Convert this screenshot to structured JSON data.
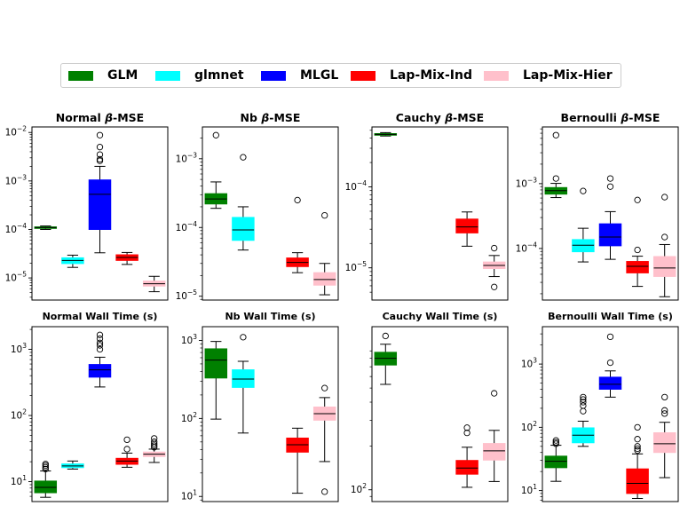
{
  "legend": [
    {
      "label": "GLM",
      "color": "#008000"
    },
    {
      "label": "glmnet",
      "color": "#00ffff"
    },
    {
      "label": "MLGL",
      "color": "#0000ff"
    },
    {
      "label": "Lap-Mix-Ind",
      "color": "#ff0000"
    },
    {
      "label": "Lap-Mix-Hier",
      "color": "#ffc0cb"
    }
  ],
  "chart_data": [
    {
      "type": "box",
      "title": "Normal β-MSE",
      "yscale": "log",
      "ylim": [
        3.5e-06,
        0.013
      ],
      "ticks": [
        {
          "v": 0.01,
          "b": "10",
          "e": "−2"
        },
        {
          "v": 0.001,
          "b": "10",
          "e": "−3"
        },
        {
          "v": 0.0001,
          "b": "10",
          "e": "−4"
        },
        {
          "v": 1e-05,
          "b": "10",
          "e": "−5"
        }
      ],
      "boxes": [
        {
          "series": "GLM",
          "pos": 1,
          "whislo": 0.0001,
          "q1": 0.000105,
          "med": 0.000109,
          "q3": 0.000113,
          "whishi": 0.000118,
          "fliers": []
        },
        {
          "series": "glmnet",
          "pos": 2,
          "whislo": 1.65e-05,
          "q1": 1.98e-05,
          "med": 2.3e-05,
          "q3": 2.6e-05,
          "whishi": 2.95e-05,
          "fliers": []
        },
        {
          "series": "MLGL",
          "pos": 3,
          "whislo": 3.3e-05,
          "q1": 0.0001,
          "med": 0.00053,
          "q3": 0.00105,
          "whishi": 0.002,
          "fliers": [
            0.0026,
            0.0028,
            0.0035,
            0.005,
            0.0088
          ]
        },
        {
          "series": "Lap-Mix-Ind",
          "pos": 4,
          "whislo": 1.9e-05,
          "q1": 2.3e-05,
          "med": 2.65e-05,
          "q3": 3e-05,
          "whishi": 3.35e-05,
          "fliers": []
        },
        {
          "series": "Lap-Mix-Hier",
          "pos": 5,
          "whislo": 5.2e-06,
          "q1": 6.8e-06,
          "med": 7.6e-06,
          "q3": 8.6e-06,
          "whishi": 1.08e-05,
          "fliers": []
        }
      ]
    },
    {
      "type": "box",
      "title": "Nb β-MSE",
      "yscale": "log",
      "ylim": [
        8.8e-06,
        0.0029
      ],
      "ticks": [
        {
          "v": 0.001,
          "b": "10",
          "e": "−3"
        },
        {
          "v": 0.0001,
          "b": "10",
          "e": "−4"
        },
        {
          "v": 1e-05,
          "b": "10",
          "e": "−5"
        }
      ],
      "boxes": [
        {
          "series": "GLM",
          "pos": 1,
          "whislo": 0.00019,
          "q1": 0.00022,
          "med": 0.00026,
          "q3": 0.00031,
          "whishi": 0.00046,
          "fliers": [
            0.0022
          ]
        },
        {
          "series": "glmnet",
          "pos": 2,
          "whislo": 4.7e-05,
          "q1": 6.5e-05,
          "med": 9.2e-05,
          "q3": 0.00014,
          "whishi": 0.0002,
          "fliers": [
            0.00105
          ]
        },
        {
          "series": "Lap-Mix-Ind",
          "pos": 4,
          "whislo": 2.2e-05,
          "q1": 2.7e-05,
          "med": 3.1e-05,
          "q3": 3.6e-05,
          "whishi": 4.3e-05,
          "fliers": [
            0.00025
          ]
        },
        {
          "series": "Lap-Mix-Hier",
          "pos": 5,
          "whislo": 1.05e-05,
          "q1": 1.45e-05,
          "med": 1.75e-05,
          "q3": 2.2e-05,
          "whishi": 3e-05,
          "fliers": [
            0.00015
          ]
        }
      ]
    },
    {
      "type": "box",
      "title": "Cauchy β-MSE",
      "yscale": "log",
      "ylim": [
        4e-06,
        0.00055
      ],
      "ticks": [
        {
          "v": 0.0001,
          "b": "10",
          "e": "−4"
        },
        {
          "v": 1e-05,
          "b": "10",
          "e": "−5"
        }
      ],
      "boxes": [
        {
          "series": "GLM",
          "pos": 1,
          "whislo": 0.000425,
          "q1": 0.000435,
          "med": 0.000445,
          "q3": 0.000455,
          "whishi": 0.000468,
          "fliers": []
        },
        {
          "series": "Lap-Mix-Ind",
          "pos": 4,
          "whislo": 1.85e-05,
          "q1": 2.7e-05,
          "med": 3.2e-05,
          "q3": 4e-05,
          "whishi": 4.9e-05,
          "fliers": []
        },
        {
          "series": "Lap-Mix-Hier",
          "pos": 5,
          "whislo": 7.8e-06,
          "q1": 9.8e-06,
          "med": 1.07e-05,
          "q3": 1.18e-05,
          "whishi": 1.42e-05,
          "fliers": [
            5.8e-06,
            1.75e-05
          ]
        }
      ]
    },
    {
      "type": "box",
      "title": "Bernoulli β-MSE",
      "yscale": "log",
      "ylim": [
        1.6e-05,
        0.0075
      ],
      "ticks": [
        {
          "v": 0.001,
          "b": "10",
          "e": "−3"
        },
        {
          "v": 0.0001,
          "b": "10",
          "e": "−4"
        }
      ],
      "boxes": [
        {
          "series": "GLM",
          "pos": 1,
          "whislo": 0.00061,
          "q1": 0.00069,
          "med": 0.00078,
          "q3": 0.00087,
          "whishi": 0.00101,
          "fliers": [
            0.0012,
            0.0056
          ]
        },
        {
          "series": "glmnet",
          "pos": 2,
          "whislo": 6.2e-05,
          "q1": 8.9e-05,
          "med": 0.000112,
          "q3": 0.000137,
          "whishi": 0.000205,
          "fliers": [
            0.00077
          ]
        },
        {
          "series": "MLGL",
          "pos": 3,
          "whislo": 6.8e-05,
          "q1": 0.00011,
          "med": 0.00015,
          "q3": 0.00024,
          "whishi": 0.00037,
          "fliers": [
            0.0009,
            0.0012
          ]
        },
        {
          "series": "Lap-Mix-Ind",
          "pos": 4,
          "whislo": 2.6e-05,
          "q1": 4.2e-05,
          "med": 5.3e-05,
          "q3": 6.3e-05,
          "whishi": 7.6e-05,
          "fliers": [
            9.5e-05,
            0.00056
          ]
        },
        {
          "series": "Lap-Mix-Hier",
          "pos": 5,
          "whislo": 1.8e-05,
          "q1": 3.7e-05,
          "med": 5e-05,
          "q3": 7.5e-05,
          "whishi": 0.000115,
          "fliers": [
            0.00015,
            0.00062
          ]
        }
      ]
    },
    {
      "type": "box",
      "title": "Normal Wall Time (s)",
      "yscale": "log",
      "ylim": [
        5,
        2200
      ],
      "ticks": [
        {
          "v": 1000,
          "b": "10",
          "e": "3"
        },
        {
          "v": 100,
          "b": "10",
          "e": "2"
        },
        {
          "v": 10,
          "b": "10",
          "e": "1"
        }
      ],
      "boxes": [
        {
          "series": "GLM",
          "pos": 1,
          "whislo": 5.8,
          "q1": 6.8,
          "med": 8.2,
          "q3": 10.2,
          "whishi": 14.5,
          "fliers": [
            15.5,
            16.5,
            17.5,
            18.5
          ]
        },
        {
          "series": "glmnet",
          "pos": 2,
          "whislo": 15.5,
          "q1": 16.3,
          "med": 17.3,
          "q3": 18.5,
          "whishi": 20.5,
          "fliers": []
        },
        {
          "series": "MLGL",
          "pos": 3,
          "whislo": 270,
          "q1": 380,
          "med": 490,
          "q3": 590,
          "whishi": 760,
          "fliers": [
            1000,
            1150,
            1250,
            1450,
            1650
          ]
        },
        {
          "series": "Lap-Mix-Ind",
          "pos": 4,
          "whislo": 16.5,
          "q1": 18.3,
          "med": 20.5,
          "q3": 22.5,
          "whishi": 27,
          "fliers": [
            31,
            43
          ]
        },
        {
          "series": "Lap-Mix-Hier",
          "pos": 5,
          "whislo": 19.5,
          "q1": 24,
          "med": 26,
          "q3": 28,
          "whishi": 31,
          "fliers": [
            33,
            35,
            37,
            40,
            45
          ]
        }
      ]
    },
    {
      "type": "box",
      "title": "Nb Wall Time (s)",
      "yscale": "log",
      "ylim": [
        8.6,
        1500
      ],
      "ticks": [
        {
          "v": 1000,
          "b": "10",
          "e": "3"
        },
        {
          "v": 100,
          "b": "10",
          "e": "2"
        },
        {
          "v": 10,
          "b": "10",
          "e": "1"
        }
      ],
      "boxes": [
        {
          "series": "GLM",
          "pos": 1,
          "whislo": 98,
          "q1": 330,
          "med": 560,
          "q3": 780,
          "whishi": 970,
          "fliers": []
        },
        {
          "series": "glmnet",
          "pos": 2,
          "whislo": 65,
          "q1": 250,
          "med": 320,
          "q3": 420,
          "whishi": 540,
          "fliers": [
            1100
          ]
        },
        {
          "series": "Lap-Mix-Ind",
          "pos": 4,
          "whislo": 11,
          "q1": 37,
          "med": 46,
          "q3": 56,
          "whishi": 75,
          "fliers": []
        },
        {
          "series": "Lap-Mix-Hier",
          "pos": 5,
          "whislo": 28,
          "q1": 95,
          "med": 115,
          "q3": 140,
          "whishi": 185,
          "fliers": [
            245,
            11.5
          ]
        }
      ]
    },
    {
      "type": "box",
      "title": "Cauchy Wall Time (s)",
      "yscale": "log",
      "ylim": [
        83,
        1320
      ],
      "ticks": [
        {
          "v": 100,
          "b": "10",
          "e": "2"
        }
      ],
      "boxes": [
        {
          "series": "GLM",
          "pos": 1,
          "whislo": 530,
          "q1": 720,
          "med": 800,
          "q3": 880,
          "whishi": 1000,
          "fliers": [
            1140
          ]
        },
        {
          "series": "Lap-Mix-Ind",
          "pos": 4,
          "whislo": 104,
          "q1": 128,
          "med": 141,
          "q3": 159,
          "whishi": 196,
          "fliers": [
            246,
            267
          ]
        },
        {
          "series": "Lap-Mix-Hier",
          "pos": 5,
          "whislo": 114,
          "q1": 160,
          "med": 185,
          "q3": 208,
          "whishi": 256,
          "fliers": [
            460
          ]
        }
      ]
    },
    {
      "type": "box",
      "title": "Bernoulli Wall Time (s)",
      "yscale": "log",
      "ylim": [
        6.7,
        3900
      ],
      "ticks": [
        {
          "v": 1000,
          "b": "10",
          "e": "3"
        },
        {
          "v": 100,
          "b": "10",
          "e": "2"
        },
        {
          "v": 10,
          "b": "10",
          "e": "1"
        }
      ],
      "boxes": [
        {
          "series": "GLM",
          "pos": 1,
          "whislo": 14,
          "q1": 23,
          "med": 29,
          "q3": 35,
          "whishi": 52,
          "fliers": [
            55,
            58,
            62
          ]
        },
        {
          "series": "glmnet",
          "pos": 2,
          "whislo": 50,
          "q1": 57,
          "med": 75,
          "q3": 98,
          "whishi": 125,
          "fliers": [
            180,
            220,
            250,
            275,
            300
          ]
        },
        {
          "series": "MLGL",
          "pos": 3,
          "whislo": 300,
          "q1": 400,
          "med": 480,
          "q3": 620,
          "whishi": 780,
          "fliers": [
            1050,
            2700
          ]
        },
        {
          "series": "Lap-Mix-Ind",
          "pos": 4,
          "whislo": 7.5,
          "q1": 9,
          "med": 13,
          "q3": 22,
          "whishi": 38,
          "fliers": [
            43,
            46,
            50,
            65,
            100
          ]
        },
        {
          "series": "Lap-Mix-Hier",
          "pos": 5,
          "whislo": 16,
          "q1": 40,
          "med": 55,
          "q3": 82,
          "whishi": 120,
          "fliers": [
            165,
            185,
            300
          ]
        }
      ]
    }
  ]
}
